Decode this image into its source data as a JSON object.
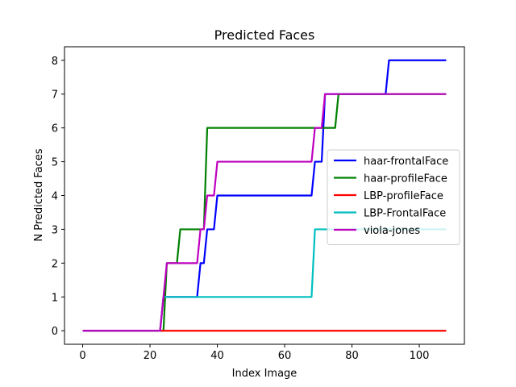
{
  "chart_data": {
    "type": "line",
    "title": "Predicted Faces",
    "xlabel": "Index Image",
    "ylabel": "N Predicted Faces",
    "xlim": [
      -5.4,
      113.4
    ],
    "ylim": [
      -0.4,
      8.4
    ],
    "xticks": [
      0,
      20,
      40,
      60,
      80,
      100
    ],
    "yticks": [
      0,
      1,
      2,
      3,
      4,
      5,
      6,
      7,
      8
    ],
    "grid": false,
    "legend_position": "center-right",
    "series": [
      {
        "name": "haar-frontalFace",
        "color": "#0000ff",
        "x": [
          0,
          22,
          23,
          24,
          25,
          26,
          34,
          35,
          36,
          37,
          38,
          39,
          40,
          68,
          69,
          70,
          71,
          72,
          90,
          91,
          108
        ],
        "y": [
          0,
          0,
          0,
          1,
          1,
          1,
          1,
          2,
          2,
          3,
          3,
          3,
          4,
          4,
          5,
          5,
          5,
          7,
          7,
          8,
          8
        ]
      },
      {
        "name": "haar-profileFace",
        "color": "#008000",
        "x": [
          0,
          23,
          24,
          25,
          28,
          29,
          35,
          36,
          37,
          38,
          72,
          73,
          74,
          75,
          76,
          108
        ],
        "y": [
          0,
          0,
          0,
          2,
          2,
          3,
          3,
          3,
          6,
          6,
          6,
          6,
          6,
          6,
          7,
          7
        ]
      },
      {
        "name": "LBP-profileFace",
        "color": "#ff0000",
        "x": [
          0,
          108
        ],
        "y": [
          0,
          0
        ]
      },
      {
        "name": "LBP-FrontalFace",
        "color": "#00bfbf",
        "x": [
          0,
          23,
          24,
          68,
          69,
          108
        ],
        "y": [
          0,
          0,
          1,
          1,
          3,
          3
        ]
      },
      {
        "name": "viola-jones",
        "color": "#bf00bf",
        "x": [
          0,
          23,
          25,
          34,
          35,
          36,
          37,
          38,
          39,
          40,
          41,
          68,
          69,
          70,
          71,
          72,
          108
        ],
        "y": [
          0,
          0,
          2,
          2,
          3,
          3,
          4,
          4,
          4,
          5,
          5,
          5,
          6,
          6,
          6,
          7,
          7
        ]
      }
    ]
  }
}
